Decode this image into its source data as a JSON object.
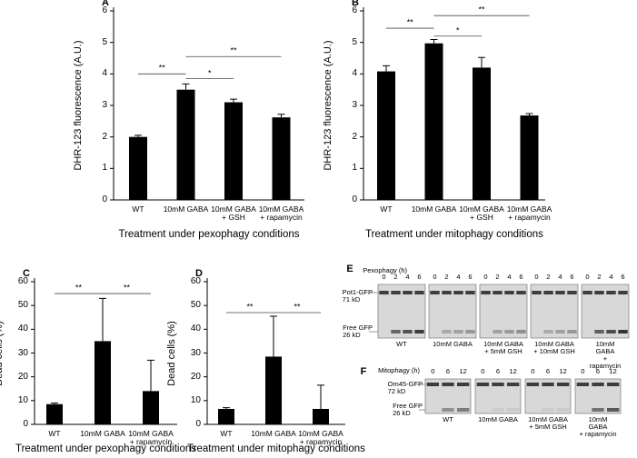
{
  "chart_data": [
    {
      "type": "bar",
      "panel": "A",
      "ylabel": "DHR-123 fluorescence (A.U.)",
      "xlabel": "Treatment under pexophagy conditions",
      "categories": [
        "WT",
        "10mM GABA",
        "10mM GABA\n+ GSH",
        "10mM GABA\n+ rapamycin"
      ],
      "values": [
        2.0,
        3.5,
        3.1,
        2.62
      ],
      "errors": [
        0.05,
        0.18,
        0.1,
        0.1
      ],
      "color": "#000000",
      "ylim": [
        0,
        6
      ],
      "yticks": [
        0,
        1,
        2,
        3,
        4,
        5,
        6
      ],
      "significance": [
        {
          "label": "**",
          "from": 0,
          "to": 1,
          "y": 4.0
        },
        {
          "label": "*",
          "from": 1,
          "to": 2,
          "y": 3.85
        },
        {
          "label": "**",
          "from": 1,
          "to": 3,
          "y": 4.55
        }
      ]
    },
    {
      "type": "bar",
      "panel": "B",
      "ylabel": "DHR-123 fluorescence (A.U.)",
      "xlabel": "Treatment under mitophagy conditions",
      "categories": [
        "WT",
        "10mM GABA",
        "10mM GABA\n+ GSH",
        "10mM GABA\n+ rapamycin"
      ],
      "values": [
        4.08,
        4.97,
        4.2,
        2.68
      ],
      "errors": [
        0.18,
        0.12,
        0.32,
        0.06
      ],
      "color": "#000000",
      "ylim": [
        0,
        6
      ],
      "yticks": [
        0,
        1,
        2,
        3,
        4,
        5,
        6
      ],
      "significance": [
        {
          "label": "**",
          "from": 0,
          "to": 1,
          "y": 5.45
        },
        {
          "label": "*",
          "from": 1,
          "to": 2,
          "y": 5.2
        },
        {
          "label": "**",
          "from": 1,
          "to": 3,
          "y": 5.85
        }
      ]
    },
    {
      "type": "bar",
      "panel": "C",
      "ylabel": "Dead cells (%)",
      "xlabel": "Treatment under pexophagy conditions",
      "categories": [
        "WT",
        "10mM GABA",
        "10mM GABA\n+ rapamycin"
      ],
      "values": [
        8.5,
        35,
        14
      ],
      "errors": [
        0.5,
        18,
        13
      ],
      "color": "#000000",
      "ylim": [
        0,
        60
      ],
      "yticks": [
        0,
        10,
        20,
        30,
        40,
        50,
        60
      ],
      "significance": [
        {
          "label": "**",
          "from": 0,
          "to": 1,
          "y": 55
        },
        {
          "label": "**",
          "from": 1,
          "to": 2,
          "y": 55
        }
      ]
    },
    {
      "type": "bar",
      "panel": "D",
      "ylabel": "Dead cells (%)",
      "xlabel": "Treatment under mitophagy conditions",
      "categories": [
        "WT",
        "10mM GABA",
        "10mM GABA\n+ rapamycin"
      ],
      "values": [
        6.5,
        28.5,
        6.5
      ],
      "errors": [
        0.5,
        17,
        10
      ],
      "color": "#000000",
      "ylim": [
        0,
        60
      ],
      "yticks": [
        0,
        10,
        20,
        30,
        40,
        50,
        60
      ],
      "significance": [
        {
          "label": "**",
          "from": 0,
          "to": 1,
          "y": 47
        },
        {
          "label": "**",
          "from": 1,
          "to": 2,
          "y": 47
        }
      ]
    }
  ],
  "blots": [
    {
      "panel": "E",
      "axis_label": "Pexophagy (h)",
      "times": [
        0,
        2,
        4,
        6
      ],
      "bands": [
        "Pot1-GFP\n71 kD",
        "Free GFP\n26 kD"
      ],
      "lanes": [
        "WT",
        "10mM GABA",
        "10mM GABA\n+ 5mM GSH",
        "10mM GABA\n+ 10mM GSH",
        "10mM GABA\n+ rapamycin"
      ]
    },
    {
      "panel": "F",
      "axis_label": "Mitophagy (h)",
      "times": [
        0,
        6,
        12
      ],
      "bands": [
        "Om45-GFP\n72 kD",
        "Free GFP\n26 kD"
      ],
      "lanes": [
        "WT",
        "10mM GABA",
        "10mM GABA\n+ 5mM GSH",
        "10mM GABA\n+ rapamycin"
      ]
    }
  ]
}
